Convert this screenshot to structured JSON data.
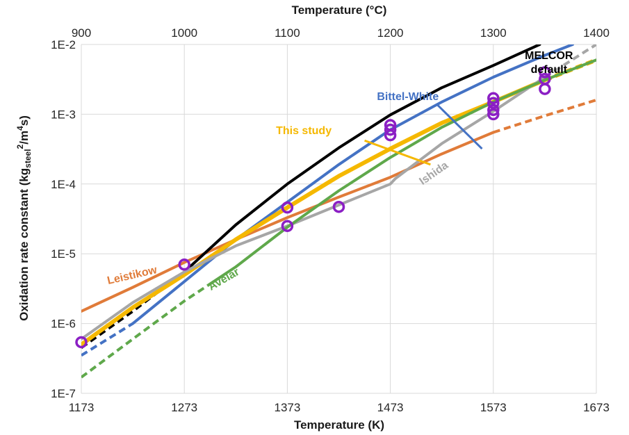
{
  "chart_data": {
    "type": "line",
    "title": "",
    "xlabel": "Temperature (K)",
    "ylabel": "Oxidation rate constant (kg_steel²/m⁴s)",
    "ylabel_parts": {
      "main": "Oxidation rate constant (kg",
      "sub": "steel",
      "sup": "2",
      "tail": "/m",
      "sup2": "4",
      "end": "s)"
    },
    "x2label": "Temperature (°C)",
    "xlim": [
      1173,
      1673
    ],
    "ylim": [
      1e-07,
      0.01
    ],
    "y_scale": "log",
    "grid": true,
    "legend": "none",
    "x_ticks": [
      "1173",
      "1273",
      "1373",
      "1473",
      "1573",
      "1673"
    ],
    "x_tick_values": [
      1173,
      1273,
      1373,
      1473,
      1573,
      1673
    ],
    "x2_ticks": [
      "900",
      "1000",
      "1100",
      "1200",
      "1300",
      "1400"
    ],
    "y_ticks": [
      "1E-7",
      "1E-6",
      "1E-5",
      "1E-4",
      "1E-3",
      "1E-2"
    ],
    "y_tick_values": [
      1e-07,
      1e-06,
      1e-05,
      0.0001,
      0.001,
      0.01
    ],
    "series": [
      {
        "name": "Leistikow",
        "color": "#e07b39",
        "solid": [
          [
            1173,
            1.5e-06
          ],
          [
            1223,
            3.3e-06
          ],
          [
            1273,
            7.5e-06
          ],
          [
            1323,
            1.6e-05
          ],
          [
            1373,
            3.3e-05
          ],
          [
            1423,
            6.5e-05
          ],
          [
            1473,
            0.000125
          ],
          [
            1523,
            0.00027
          ],
          [
            1573,
            0.00055
          ]
        ],
        "dashed": [
          [
            1573,
            0.00055
          ],
          [
            1623,
            0.00095
          ],
          [
            1673,
            0.0016
          ]
        ]
      },
      {
        "name": "MELCOR\ndefault",
        "color": "#000000",
        "dashed": [
          [
            1173,
            4.5e-07
          ],
          [
            1223,
            1.5e-06
          ],
          [
            1273,
            5.5e-06
          ]
        ],
        "solid": [
          [
            1273,
            5.5e-06
          ],
          [
            1323,
            2.6e-05
          ],
          [
            1373,
            0.0001
          ],
          [
            1423,
            0.00033
          ],
          [
            1473,
            0.00098
          ],
          [
            1523,
            0.0024
          ],
          [
            1573,
            0.005
          ],
          [
            1618,
            0.01
          ]
        ]
      },
      {
        "name": "Bittel-White",
        "color": "#4472c4",
        "dashed": [
          [
            1173,
            3.5e-07
          ],
          [
            1223,
            1e-06
          ]
        ],
        "solid": [
          [
            1223,
            1e-06
          ],
          [
            1273,
            4e-06
          ],
          [
            1323,
            1.6e-05
          ],
          [
            1373,
            5.5e-05
          ],
          [
            1423,
            0.00019
          ],
          [
            1473,
            0.0006
          ],
          [
            1523,
            0.0015
          ],
          [
            1573,
            0.0034
          ],
          [
            1623,
            0.007
          ],
          [
            1650,
            0.01
          ]
        ]
      },
      {
        "name": "This study",
        "color": "#f5b800",
        "solid": [
          [
            1173,
            5e-07
          ],
          [
            1223,
            1.7e-06
          ],
          [
            1273,
            5e-06
          ],
          [
            1323,
            1.6e-05
          ],
          [
            1373,
            4.6e-05
          ],
          [
            1423,
            0.00013
          ],
          [
            1473,
            0.00032
          ],
          [
            1523,
            0.00075
          ],
          [
            1573,
            0.0015
          ],
          [
            1623,
            0.0031
          ]
        ],
        "dashed": [
          [
            1623,
            0.0031
          ],
          [
            1673,
            0.006
          ]
        ]
      },
      {
        "name": "Ishida",
        "color": "#a6a6a6",
        "solid": [
          [
            1173,
            6e-07
          ],
          [
            1223,
            2e-06
          ],
          [
            1273,
            5.5e-06
          ],
          [
            1323,
            1.3e-05
          ],
          [
            1373,
            2.5e-05
          ],
          [
            1423,
            5e-05
          ],
          [
            1473,
            0.0001
          ],
          [
            1478,
            0.00012
          ],
          [
            1523,
            0.00038
          ],
          [
            1573,
            0.0011
          ],
          [
            1623,
            0.0034
          ]
        ],
        "dashed": [
          [
            1623,
            0.0034
          ],
          [
            1673,
            0.01
          ]
        ]
      },
      {
        "name": "Avelar",
        "color": "#5fa84b",
        "dashed": [
          [
            1173,
            1.7e-07
          ],
          [
            1223,
            6e-07
          ],
          [
            1273,
            2.1e-06
          ],
          [
            1298,
            3.7e-06
          ]
        ],
        "solid": [
          [
            1298,
            3.7e-06
          ],
          [
            1323,
            6.5e-06
          ],
          [
            1373,
            2.4e-05
          ],
          [
            1423,
            8e-05
          ],
          [
            1473,
            0.00024
          ],
          [
            1523,
            0.00065
          ],
          [
            1573,
            0.0015
          ],
          [
            1623,
            0.0031
          ],
          [
            1673,
            0.006
          ]
        ]
      }
    ],
    "markers": {
      "color": "#8b1fc4",
      "points": [
        [
          1173,
          5.4e-07
        ],
        [
          1273,
          7e-06
        ],
        [
          1373,
          4.6e-05
        ],
        [
          1373,
          2.5e-05
        ],
        [
          1423,
          4.7e-05
        ],
        [
          1473,
          0.0007
        ],
        [
          1473,
          0.0006
        ],
        [
          1473,
          0.0005
        ],
        [
          1573,
          0.0017
        ],
        [
          1573,
          0.00145
        ],
        [
          1573,
          0.00115
        ],
        [
          1573,
          0.001
        ],
        [
          1623,
          0.004
        ],
        [
          1623,
          0.0032
        ],
        [
          1623,
          0.0023
        ]
      ]
    },
    "labels": [
      {
        "text": "MELCOR",
        "x": 1627,
        "y": 0.0062,
        "color": "#000000"
      },
      {
        "text": "default",
        "x": 1627,
        "y": 0.0039,
        "color": "#000000"
      },
      {
        "text": "Bittel-White",
        "x": 1490,
        "y": 0.0016,
        "color": "#4472c4"
      },
      {
        "text": "This study",
        "x": 1389,
        "y": 0.00052,
        "color": "#f5b800"
      },
      {
        "text": "Leistikow",
        "x": 1223,
        "y": 4.4e-06,
        "color": "#e07b39",
        "angle": -13
      },
      {
        "text": "Avelar",
        "x": 1313,
        "y": 3.9e-06,
        "color": "#5fa84b",
        "angle": -30
      },
      {
        "text": "Ishida",
        "x": 1517,
        "y": 0.00013,
        "color": "#a6a6a6",
        "angle": -35
      }
    ],
    "pointer_lines": [
      {
        "series": "Bittel-White",
        "color": "#4472c4",
        "from": [
          1519,
          0.00135
        ],
        "to": [
          1562,
          0.00032
        ]
      },
      {
        "series": "This study",
        "color": "#f5b800",
        "from": [
          1448,
          0.00042
        ],
        "to": [
          1512,
          0.00019
        ]
      }
    ]
  }
}
